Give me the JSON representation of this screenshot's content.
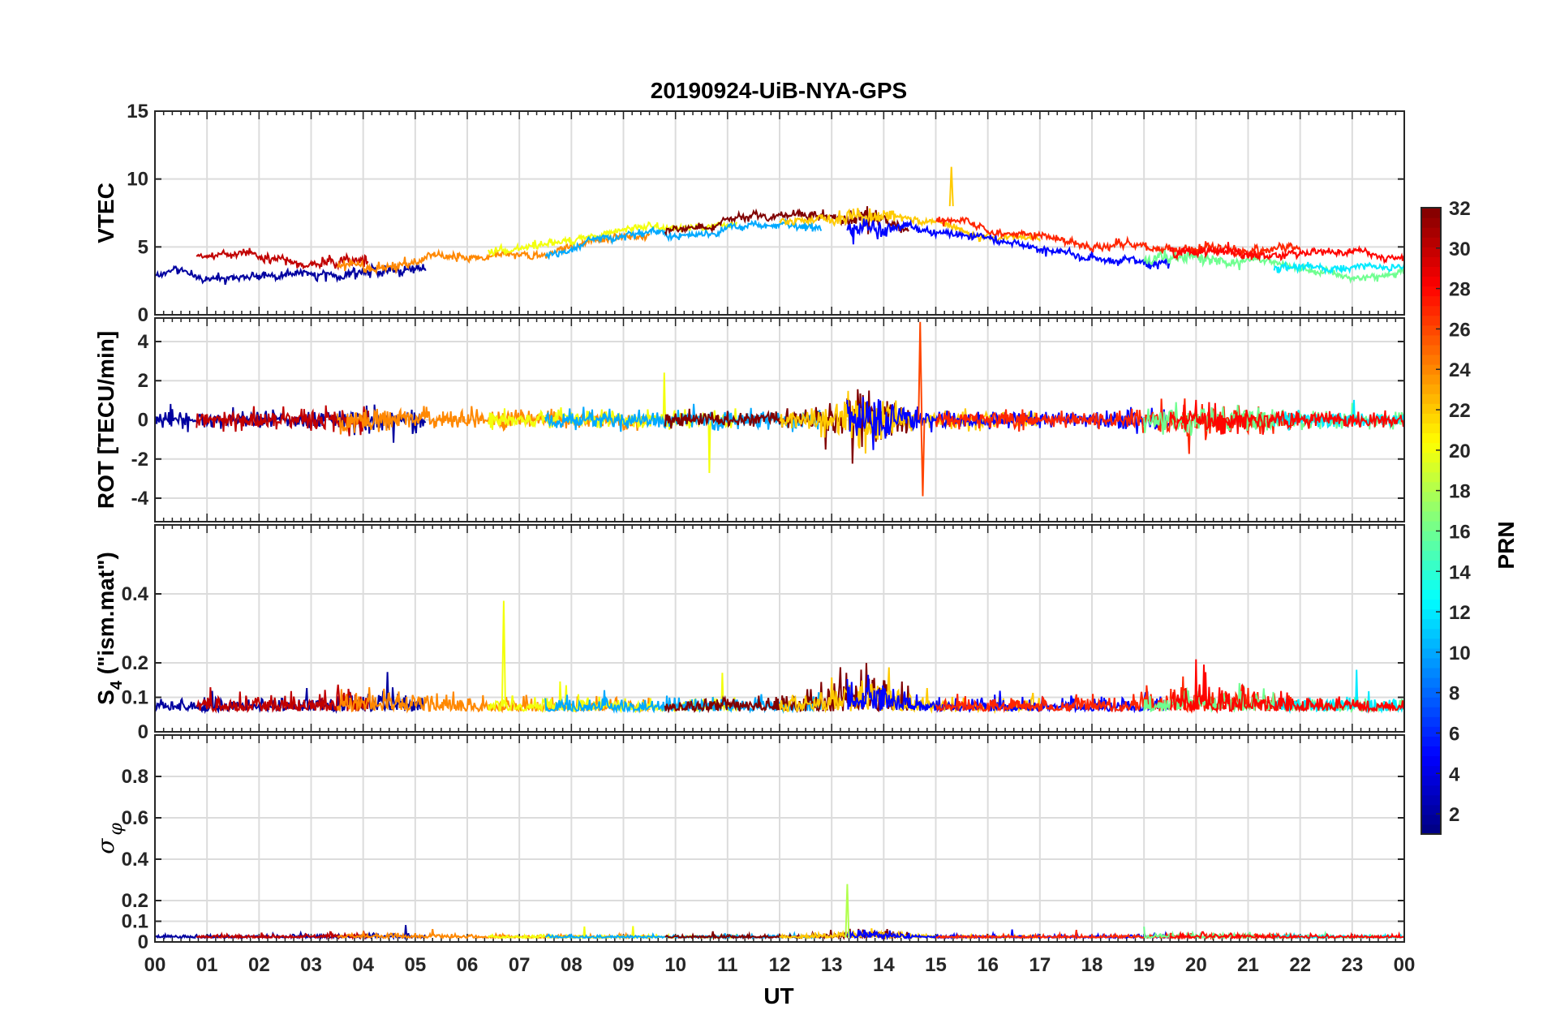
{
  "chart_data": {
    "type": "line",
    "title": "20190924-UiB-NYA-GPS",
    "xlabel": "UT",
    "x_tick_labels": [
      "00",
      "01",
      "02",
      "03",
      "04",
      "05",
      "06",
      "07",
      "08",
      "09",
      "10",
      "11",
      "12",
      "13",
      "14",
      "15",
      "16",
      "17",
      "18",
      "19",
      "20",
      "21",
      "22",
      "23",
      "00"
    ],
    "xlim_hours": [
      0,
      24
    ],
    "grid": true,
    "panels": [
      {
        "id": "vtec",
        "ylabel": "VTEC",
        "ylim": [
          0,
          15
        ],
        "y_ticks": [
          0,
          5,
          10,
          15
        ],
        "y_tick_labels": [
          "0",
          "5",
          "10",
          "15"
        ],
        "summary": {
          "baseline_start": 3.5,
          "peak_day": 7.0,
          "baseline_end": 4.0,
          "max_spike": 10.9
        }
      },
      {
        "id": "rot",
        "ylabel": "ROT [TECU/min]",
        "ylim": [
          -5.2,
          5.2
        ],
        "y_ticks": [
          -4,
          -2,
          0,
          2,
          4
        ],
        "y_tick_labels": [
          "-4",
          "-2",
          "0",
          "2",
          "4"
        ],
        "summary": {
          "noise_amplitude": 0.5,
          "max_spike": 5.0,
          "min_spike": -3.9
        }
      },
      {
        "id": "s4",
        "ylabel_main": "S",
        "ylabel_sub": "4",
        "ylabel_rest": " (\"ism.mat\")",
        "ylim": [
          0,
          0.6
        ],
        "y_ticks": [
          0,
          0.1,
          0.2,
          0.4
        ],
        "y_tick_labels": [
          "0",
          "0.1",
          "0.2",
          "0.4"
        ],
        "summary": {
          "baseline": 0.06,
          "max_spike": 0.38
        }
      },
      {
        "id": "sigma",
        "ylabel_main": "σ",
        "ylabel_sub": "φ",
        "ylim": [
          0,
          1
        ],
        "y_ticks": [
          0,
          0.1,
          0.2,
          0.4,
          0.6,
          0.8
        ],
        "y_tick_labels": [
          "0",
          "0.1",
          "0.2",
          "0.4",
          "0.6",
          "0.8"
        ],
        "summary": {
          "baseline": 0.02,
          "max_spike": 0.28
        }
      }
    ],
    "colorbar": {
      "label": "PRN",
      "range": [
        1,
        32
      ],
      "colormap": "jet",
      "ticks": [
        2,
        4,
        6,
        8,
        10,
        12,
        14,
        16,
        18,
        20,
        22,
        24,
        26,
        28,
        30,
        32
      ],
      "tick_labels": [
        "2",
        "4",
        "6",
        "8",
        "10",
        "12",
        "14",
        "16",
        "18",
        "20",
        "22",
        "24",
        "26",
        "28",
        "30",
        "32"
      ]
    },
    "series": [
      {
        "prn": 2,
        "t_start": 0.0,
        "t_end": 5.2
      },
      {
        "prn": 30,
        "t_start": 0.8,
        "t_end": 4.1
      },
      {
        "prn": 24,
        "t_start": 3.5,
        "t_end": 9.5
      },
      {
        "prn": 20,
        "t_start": 6.4,
        "t_end": 11.2
      },
      {
        "prn": 10,
        "t_start": 7.5,
        "t_end": 12.8
      },
      {
        "prn": 32,
        "t_start": 9.8,
        "t_end": 14.5
      },
      {
        "prn": 22,
        "t_start": 12.0,
        "t_end": 17.0
      },
      {
        "prn": 5,
        "t_start": 13.3,
        "t_end": 19.5
      },
      {
        "prn": 27,
        "t_start": 15.0,
        "t_end": 22.0
      },
      {
        "prn": 16,
        "t_start": 19.0,
        "t_end": 24.0
      },
      {
        "prn": 12,
        "t_start": 21.5,
        "t_end": 24.0
      },
      {
        "prn": 28,
        "t_start": 19.5,
        "t_end": 24.0
      }
    ]
  }
}
